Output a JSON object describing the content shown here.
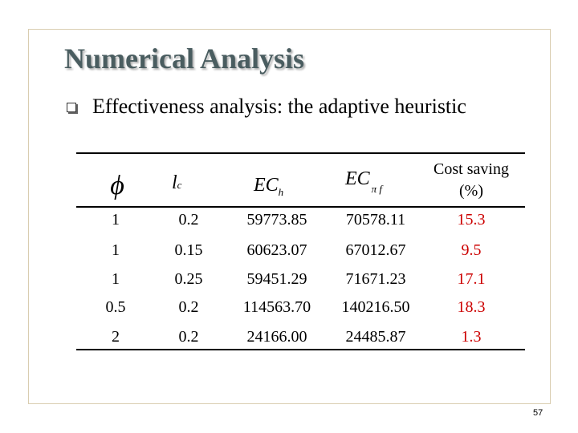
{
  "slide": {
    "title": "Numerical Analysis",
    "bullet": "Effectiveness analysis: the adaptive heuristic",
    "page_number": "57"
  },
  "table": {
    "headers": {
      "phi": "ϕ",
      "lc_main": "l",
      "lc_sub": "c",
      "ech_main": "EC",
      "ech_sub": "h",
      "ecpi_main": "EC",
      "ecpi_sub": "π f",
      "saving_line1": "Cost saving",
      "saving_line2": "(%)"
    },
    "rows": [
      {
        "phi": "1",
        "lc": "0.2",
        "ech": "59773.85",
        "ecpi": "70578.11",
        "saving": "15.3"
      },
      {
        "phi": "1",
        "lc": "0.15",
        "ech": "60623.07",
        "ecpi": "67012.67",
        "saving": "9.5"
      },
      {
        "phi": "1",
        "lc": "0.25",
        "ech": "59451.29",
        "ecpi": "71671.23",
        "saving": "17.1"
      },
      {
        "phi": "0.5",
        "lc": "0.2",
        "ech": "114563.70",
        "ecpi": "140216.50",
        "saving": "18.3"
      },
      {
        "phi": "2",
        "lc": "0.2",
        "ech": "24166.00",
        "ecpi": "24485.87",
        "saving": "1.3"
      }
    ],
    "saving_color": "#cc0000"
  }
}
